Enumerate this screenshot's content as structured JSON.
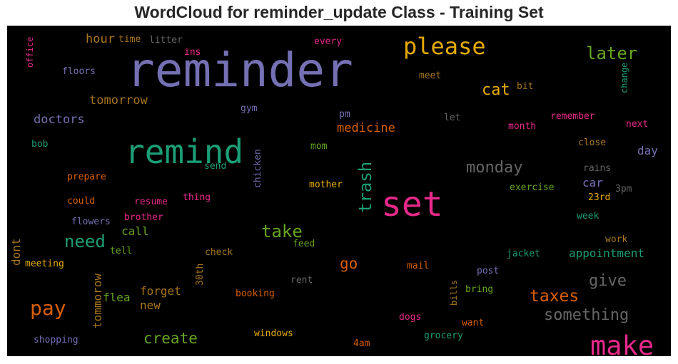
{
  "chart_data": {
    "type": "wordcloud",
    "title": "WordCloud for reminder_update Class - Training Set",
    "background": "#000000",
    "words": [
      {
        "text": "reminder",
        "size": 66,
        "color": "#7570b3",
        "rotate": 0
      },
      {
        "text": "set",
        "size": 48,
        "color": "#e7298a",
        "rotate": 0
      },
      {
        "text": "remind",
        "size": 46,
        "color": "#1b9e77",
        "rotate": 0
      },
      {
        "text": "make",
        "size": 37,
        "color": "#e7298a",
        "rotate": 0
      },
      {
        "text": "please",
        "size": 32,
        "color": "#e6ab02",
        "rotate": 0
      },
      {
        "text": "pay",
        "size": 28,
        "color": "#d95f02",
        "rotate": 0
      },
      {
        "text": "trash",
        "size": 24,
        "color": "#1b9e77",
        "rotate": -90
      },
      {
        "text": "later",
        "size": 24,
        "color": "#66a61e",
        "rotate": 0
      },
      {
        "text": "take",
        "size": 24,
        "color": "#66a61e",
        "rotate": 0
      },
      {
        "text": "need",
        "size": 24,
        "color": "#1b9e77",
        "rotate": 0
      },
      {
        "text": "taxes",
        "size": 23,
        "color": "#d95f02",
        "rotate": 0
      },
      {
        "text": "monday",
        "size": 22,
        "color": "#666666",
        "rotate": 0
      },
      {
        "text": "cat",
        "size": 22,
        "color": "#e6ab02",
        "rotate": 0
      },
      {
        "text": "give",
        "size": 22,
        "color": "#666666",
        "rotate": 0
      },
      {
        "text": "something",
        "size": 22,
        "color": "#666666",
        "rotate": 0
      },
      {
        "text": "go",
        "size": 21,
        "color": "#d95f02",
        "rotate": 0
      },
      {
        "text": "create",
        "size": 21,
        "color": "#66a61e",
        "rotate": 0
      },
      {
        "text": "medicine",
        "size": 17,
        "color": "#d95f02",
        "rotate": 0
      },
      {
        "text": "doctors",
        "size": 17,
        "color": "#7570b3",
        "rotate": 0
      },
      {
        "text": "tomorrow",
        "size": 17,
        "color": "#a6761d",
        "rotate": 0
      },
      {
        "text": "hour",
        "size": 17,
        "color": "#a6761d",
        "rotate": 0
      },
      {
        "text": "appointment",
        "size": 16,
        "color": "#1b9e77",
        "rotate": 0
      },
      {
        "text": "forget",
        "size": 16,
        "color": "#a6761d",
        "rotate": 0
      },
      {
        "text": "flea",
        "size": 16,
        "color": "#66a61e",
        "rotate": 0
      },
      {
        "text": "call",
        "size": 16,
        "color": "#66a61e",
        "rotate": 0
      },
      {
        "text": "new",
        "size": 16,
        "color": "#a6761d",
        "rotate": 0
      },
      {
        "text": "day",
        "size": 16,
        "color": "#7570b3",
        "rotate": 0
      },
      {
        "text": "car",
        "size": 16,
        "color": "#7570b3",
        "rotate": 0
      },
      {
        "text": "tommorow",
        "size": 16,
        "color": "#a6761d",
        "rotate": -90
      },
      {
        "text": "dont",
        "size": 16,
        "color": "#a6761d",
        "rotate": -90
      },
      {
        "text": "chicken",
        "size": 13,
        "color": "#7570b3",
        "rotate": -90
      },
      {
        "text": "office",
        "size": 12,
        "color": "#e7298a",
        "rotate": -90
      },
      {
        "text": "change",
        "size": 12,
        "color": "#1b9e77",
        "rotate": -90
      },
      {
        "text": "30th",
        "size": 13,
        "color": "#a6761d",
        "rotate": -90
      },
      {
        "text": "bills",
        "size": 12,
        "color": "#a6761d",
        "rotate": -90
      },
      {
        "text": "time",
        "size": 13,
        "color": "#a6761d",
        "rotate": 0
      },
      {
        "text": "litter",
        "size": 13,
        "color": "#666666",
        "rotate": 0
      },
      {
        "text": "ins",
        "size": 13,
        "color": "#e7298a",
        "rotate": 0
      },
      {
        "text": "every",
        "size": 13,
        "color": "#e7298a",
        "rotate": 0
      },
      {
        "text": "floors",
        "size": 13,
        "color": "#7570b3",
        "rotate": 0
      },
      {
        "text": "meet",
        "size": 13,
        "color": "#a6761d",
        "rotate": 0
      },
      {
        "text": "bit",
        "size": 13,
        "color": "#a6761d",
        "rotate": 0
      },
      {
        "text": "gym",
        "size": 13,
        "color": "#7570b3",
        "rotate": 0
      },
      {
        "text": "pm",
        "size": 13,
        "color": "#7570b3",
        "rotate": 0
      },
      {
        "text": "let",
        "size": 13,
        "color": "#666666",
        "rotate": 0
      },
      {
        "text": "remember",
        "size": 13,
        "color": "#e7298a",
        "rotate": 0
      },
      {
        "text": "month",
        "size": 13,
        "color": "#e7298a",
        "rotate": 0
      },
      {
        "text": "next",
        "size": 13,
        "color": "#e7298a",
        "rotate": 0
      },
      {
        "text": "bob",
        "size": 13,
        "color": "#1b9e77",
        "rotate": 0
      },
      {
        "text": "mom",
        "size": 13,
        "color": "#66a61e",
        "rotate": 0
      },
      {
        "text": "close",
        "size": 13,
        "color": "#a6761d",
        "rotate": 0
      },
      {
        "text": "prepare",
        "size": 13,
        "color": "#d95f02",
        "rotate": 0
      },
      {
        "text": "send",
        "size": 13,
        "color": "#1b9e77",
        "rotate": 0
      },
      {
        "text": "rains",
        "size": 13,
        "color": "#666666",
        "rotate": 0
      },
      {
        "text": "could",
        "size": 13,
        "color": "#d95f02",
        "rotate": 0
      },
      {
        "text": "resume",
        "size": 13,
        "color": "#e7298a",
        "rotate": 0
      },
      {
        "text": "thing",
        "size": 13,
        "color": "#e7298a",
        "rotate": 0
      },
      {
        "text": "mother",
        "size": 13,
        "color": "#e6ab02",
        "rotate": 0
      },
      {
        "text": "exercise",
        "size": 13,
        "color": "#66a61e",
        "rotate": 0
      },
      {
        "text": "23rd",
        "size": 13,
        "color": "#e6ab02",
        "rotate": 0
      },
      {
        "text": "3pm",
        "size": 13,
        "color": "#666666",
        "rotate": 0
      },
      {
        "text": "flowers",
        "size": 13,
        "color": "#7570b3",
        "rotate": 0
      },
      {
        "text": "brother",
        "size": 13,
        "color": "#e7298a",
        "rotate": 0
      },
      {
        "text": "week",
        "size": 13,
        "color": "#1b9e77",
        "rotate": 0
      },
      {
        "text": "work",
        "size": 13,
        "color": "#a6761d",
        "rotate": 0
      },
      {
        "text": "tell",
        "size": 13,
        "color": "#66a61e",
        "rotate": 0
      },
      {
        "text": "check",
        "size": 13,
        "color": "#a6761d",
        "rotate": 0
      },
      {
        "text": "feed",
        "size": 13,
        "color": "#66a61e",
        "rotate": 0
      },
      {
        "text": "jacket",
        "size": 13,
        "color": "#1b9e77",
        "rotate": 0
      },
      {
        "text": "meeting",
        "size": 13,
        "color": "#e6ab02",
        "rotate": 0
      },
      {
        "text": "mail",
        "size": 13,
        "color": "#d95f02",
        "rotate": 0
      },
      {
        "text": "post",
        "size": 13,
        "color": "#7570b3",
        "rotate": 0
      },
      {
        "text": "rent",
        "size": 13,
        "color": "#666666",
        "rotate": 0
      },
      {
        "text": "booking",
        "size": 13,
        "color": "#d95f02",
        "rotate": 0
      },
      {
        "text": "bring",
        "size": 13,
        "color": "#66a61e",
        "rotate": 0
      },
      {
        "text": "dogs",
        "size": 13,
        "color": "#e7298a",
        "rotate": 0
      },
      {
        "text": "want",
        "size": 13,
        "color": "#d95f02",
        "rotate": 0
      },
      {
        "text": "windows",
        "size": 13,
        "color": "#e6ab02",
        "rotate": 0
      },
      {
        "text": "grocery",
        "size": 13,
        "color": "#1b9e77",
        "rotate": 0
      },
      {
        "text": "shopping",
        "size": 13,
        "color": "#7570b3",
        "rotate": 0
      },
      {
        "text": "4am",
        "size": 13,
        "color": "#d95f02",
        "rotate": 0
      }
    ]
  }
}
